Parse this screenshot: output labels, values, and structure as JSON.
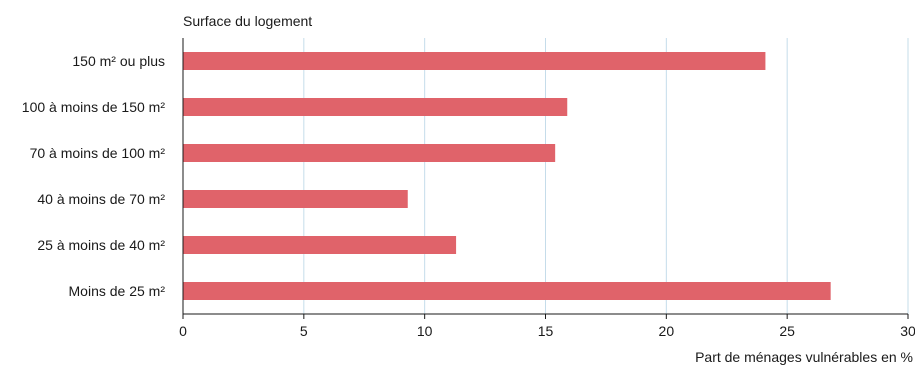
{
  "chart_data": {
    "type": "bar",
    "orientation": "horizontal",
    "title": "Surface du logement",
    "xlabel": "Part de ménages vulnérables en %",
    "ylabel": "",
    "categories": [
      "150 m² ou plus",
      "100 à moins de 150 m²",
      "70 à moins de 100 m²",
      "40 à moins de 70 m²",
      "25 à moins de 40 m²",
      "Moins de 25 m²"
    ],
    "values": [
      24.1,
      15.9,
      15.4,
      9.3,
      11.3,
      26.8
    ],
    "xlim": [
      0,
      30
    ],
    "xticks": [
      "0",
      "5",
      "10",
      "15",
      "20",
      "25",
      "30"
    ],
    "grid": true,
    "colors": {
      "bar": "#e0636a",
      "grid": "#c5dcea",
      "axis": "#1a1a1a"
    }
  }
}
